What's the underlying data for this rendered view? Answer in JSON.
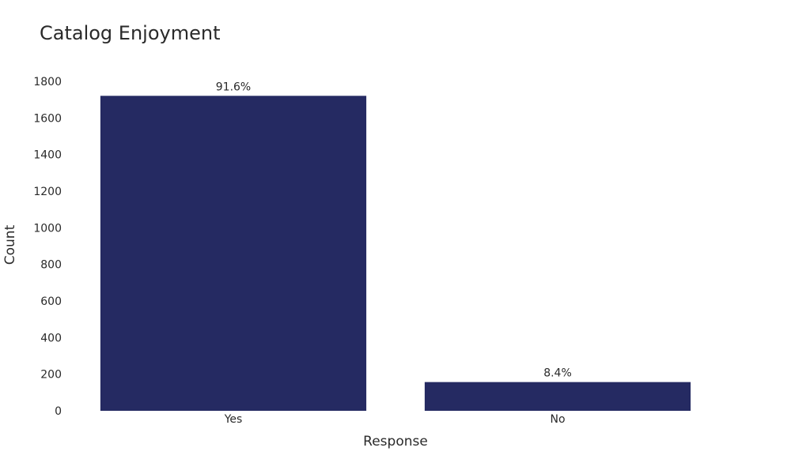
{
  "chart_data": {
    "type": "bar",
    "title": "Catalog Enjoyment",
    "xlabel": "Response",
    "ylabel": "Count",
    "categories": [
      "Yes",
      "No"
    ],
    "values": [
      1721,
      157
    ],
    "data_labels": [
      "91.6%",
      "8.4%"
    ],
    "ylim": [
      0,
      1800
    ],
    "yticks": [
      0,
      200,
      400,
      600,
      800,
      1000,
      1200,
      1400,
      1600,
      1800
    ],
    "ytick_labels": [
      "0",
      "200",
      "400",
      "600",
      "800",
      "1000",
      "1200",
      "1400",
      "1600",
      "1800"
    ],
    "grid": false,
    "legend": "none",
    "bar_color": "#252a62"
  }
}
